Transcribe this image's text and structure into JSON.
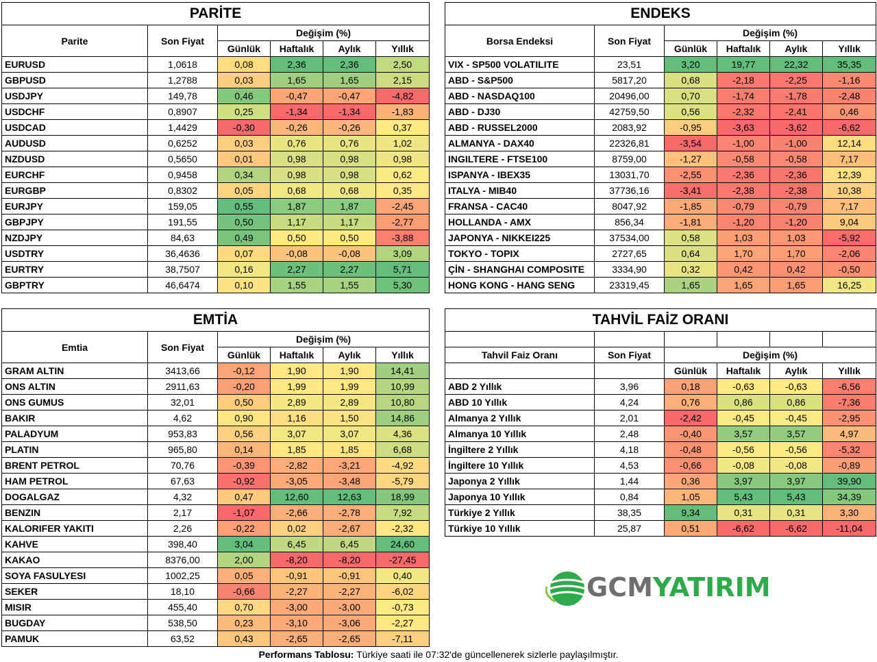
{
  "colors": {
    "scale_red": "#f8696b",
    "scale_yellow": "#ffeb84",
    "scale_green": "#63be7b"
  },
  "parite": {
    "title": "PARİTE",
    "col_name": "Parite",
    "col_price": "Son Fiyat",
    "col_change": "Değişim (%)",
    "sub": [
      "Günlük",
      "Haftalık",
      "Aylık",
      "Yıllık"
    ],
    "rows": [
      {
        "name": "EURUSD",
        "price": "1,0618",
        "vals": [
          "0,08",
          "2,36",
          "2,36",
          "2,50"
        ]
      },
      {
        "name": "GBPUSD",
        "price": "1,2788",
        "vals": [
          "0,03",
          "1,65",
          "1,65",
          "2,15"
        ]
      },
      {
        "name": "USDJPY",
        "price": "149,78",
        "vals": [
          "0,46",
          "-0,47",
          "-0,47",
          "-4,82"
        ]
      },
      {
        "name": "USDCHF",
        "price": "0,8907",
        "vals": [
          "0,25",
          "-1,34",
          "-1,34",
          "-1,83"
        ]
      },
      {
        "name": "USDCAD",
        "price": "1,4429",
        "vals": [
          "-0,30",
          "-0,26",
          "-0,26",
          "0,37"
        ]
      },
      {
        "name": "AUDUSD",
        "price": "0,6252",
        "vals": [
          "0,03",
          "0,76",
          "0,76",
          "1,02"
        ]
      },
      {
        "name": "NZDUSD",
        "price": "0,5650",
        "vals": [
          "0,01",
          "0,98",
          "0,98",
          "0,98"
        ]
      },
      {
        "name": "EURCHF",
        "price": "0,9458",
        "vals": [
          "0,34",
          "0,98",
          "0,98",
          "0,62"
        ]
      },
      {
        "name": "EURGBP",
        "price": "0,8302",
        "vals": [
          "0,05",
          "0,68",
          "0,68",
          "0,35"
        ]
      },
      {
        "name": "EURJPY",
        "price": "159,05",
        "vals": [
          "0,55",
          "1,87",
          "1,87",
          "-2,45"
        ]
      },
      {
        "name": "GBPJPY",
        "price": "191,55",
        "vals": [
          "0,50",
          "1,17",
          "1,17",
          "-2,77"
        ]
      },
      {
        "name": "NZDJPY",
        "price": "84,63",
        "vals": [
          "0,49",
          "0,50",
          "0,50",
          "-3,88"
        ]
      },
      {
        "name": "USDTRY",
        "price": "36,4636",
        "vals": [
          "0,07",
          "-0,08",
          "-0,08",
          "3,09"
        ]
      },
      {
        "name": "EURTRY",
        "price": "38,7507",
        "vals": [
          "0,16",
          "2,27",
          "2,27",
          "5,71"
        ]
      },
      {
        "name": "GBPTRY",
        "price": "46,6474",
        "vals": [
          "0,10",
          "1,55",
          "1,55",
          "5,30"
        ]
      }
    ]
  },
  "endeks": {
    "title": "ENDEKS",
    "col_name": "Borsa Endeksi",
    "col_price": "Son Fiyat",
    "col_change": "Değişim (%)",
    "sub": [
      "Günlük",
      "Haftalık",
      "Aylık",
      "Yıllık"
    ],
    "rows": [
      {
        "name": "VIX  - SP500 VOLATILITE",
        "price": "23,51",
        "vals": [
          "3,20",
          "19,77",
          "22,32",
          "35,35"
        ]
      },
      {
        "name": "ABD - S&P500",
        "price": "5817,20",
        "vals": [
          "0,68",
          "-2,18",
          "-2,25",
          "-1,16"
        ]
      },
      {
        "name": "ABD - NASDAQ100",
        "price": "20496,00",
        "vals": [
          "0,70",
          "-1,74",
          "-1,78",
          "-2,48"
        ]
      },
      {
        "name": "ABD - DJ30",
        "price": "42759,50",
        "vals": [
          "0,56",
          "-2,32",
          "-2,41",
          "0,46"
        ]
      },
      {
        "name": "ABD - RUSSEL2000",
        "price": "2083,92",
        "vals": [
          "-0,95",
          "-3,63",
          "-3,62",
          "-6,62"
        ]
      },
      {
        "name": "ALMANYA - DAX40",
        "price": "22326,81",
        "vals": [
          "-3,54",
          "-1,00",
          "-1,00",
          "12,14"
        ]
      },
      {
        "name": "INGILTERE - FTSE100",
        "price": "8759,00",
        "vals": [
          "-1,27",
          "-0,58",
          "-0,58",
          "7,17"
        ]
      },
      {
        "name": "ISPANYA - IBEX35",
        "price": "13031,70",
        "vals": [
          "-2,55",
          "-2,36",
          "-2,36",
          "12,39"
        ]
      },
      {
        "name": "ITALYA - MIB40",
        "price": "37736,16",
        "vals": [
          "-3,41",
          "-2,38",
          "-2,38",
          "10,38"
        ]
      },
      {
        "name": "FRANSA - CAC40",
        "price": "8047,92",
        "vals": [
          "-1,85",
          "-0,79",
          "-0,79",
          "7,17"
        ]
      },
      {
        "name": "HOLLANDA - AMX",
        "price": "856,34",
        "vals": [
          "-1,81",
          "-1,20",
          "-1,20",
          "9,04"
        ]
      },
      {
        "name": "JAPONYA - NIKKEI225",
        "price": "37534,00",
        "vals": [
          "0,58",
          "1,03",
          "1,03",
          "-5,92"
        ]
      },
      {
        "name": "TOKYO - TOPIX",
        "price": "2727,65",
        "vals": [
          "0,64",
          "1,70",
          "1,70",
          "-2,06"
        ]
      },
      {
        "name": "ÇİN - SHANGHAI COMPOSITE",
        "price": "3334,90",
        "vals": [
          "0,32",
          "0,42",
          "0,42",
          "-0,50"
        ]
      },
      {
        "name": "HONG KONG - HANG SENG",
        "price": "23319,45",
        "vals": [
          "1,65",
          "1,65",
          "1,65",
          "16,25"
        ]
      }
    ]
  },
  "emtia": {
    "title": "EMTİA",
    "col_name": "Emtia",
    "col_price": "Son Fiyat",
    "col_change": "Değişim (%)",
    "sub": [
      "Günlük",
      "Haftalık",
      "Aylık",
      "Yıllık"
    ],
    "rows": [
      {
        "name": "GRAM ALTIN",
        "price": "3413,66",
        "vals": [
          "-0,12",
          "1,90",
          "1,90",
          "14,41"
        ]
      },
      {
        "name": "ONS ALTIN",
        "price": "2911,63",
        "vals": [
          "-0,20",
          "1,99",
          "1,99",
          "10,99"
        ]
      },
      {
        "name": "ONS GUMUS",
        "price": "32,01",
        "vals": [
          "0,50",
          "2,89",
          "2,89",
          "10,80"
        ]
      },
      {
        "name": "BAKIR",
        "price": "4,62",
        "vals": [
          "0,90",
          "1,16",
          "1,50",
          "14,86"
        ]
      },
      {
        "name": "PALADYUM",
        "price": "953,83",
        "vals": [
          "0,56",
          "3,07",
          "3,07",
          "4,36"
        ]
      },
      {
        "name": "PLATIN",
        "price": "965,80",
        "vals": [
          "0,14",
          "1,85",
          "1,85",
          "6,68"
        ]
      },
      {
        "name": "BRENT PETROL",
        "price": "70,76",
        "vals": [
          "-0,39",
          "-2,82",
          "-3,21",
          "-4,92"
        ]
      },
      {
        "name": "HAM PETROL",
        "price": "67,63",
        "vals": [
          "-0,92",
          "-3,05",
          "-3,48",
          "-5,79"
        ]
      },
      {
        "name": "DOGALGAZ",
        "price": "4,32",
        "vals": [
          "0,47",
          "12,60",
          "12,63",
          "18,99"
        ]
      },
      {
        "name": "BENZIN",
        "price": "2,17",
        "vals": [
          "-1,07",
          "-2,66",
          "-2,78",
          "7,92"
        ]
      },
      {
        "name": "KALORIFER YAKITI",
        "price": "2,26",
        "vals": [
          "-0,22",
          "0,02",
          "-2,67",
          "-2,32"
        ]
      },
      {
        "name": "KAHVE",
        "price": "398,40",
        "vals": [
          "3,04",
          "6,45",
          "6,45",
          "24,60"
        ]
      },
      {
        "name": "KAKAO",
        "price": "8376,00",
        "vals": [
          "2,00",
          "-8,20",
          "-8,20",
          "-27,45"
        ]
      },
      {
        "name": "SOYA FASULYESI",
        "price": "1002,25",
        "vals": [
          "0,05",
          "-0,91",
          "-0,91",
          "0,40"
        ]
      },
      {
        "name": "SEKER",
        "price": "18,10",
        "vals": [
          "-0,66",
          "-2,27",
          "-2,27",
          "-6,02"
        ]
      },
      {
        "name": "MISIR",
        "price": "455,40",
        "vals": [
          "0,70",
          "-3,00",
          "-3,00",
          "-0,73"
        ]
      },
      {
        "name": "BUGDAY",
        "price": "538,50",
        "vals": [
          "0,23",
          "-3,10",
          "-3,06",
          "-2,27"
        ]
      },
      {
        "name": "PAMUK",
        "price": "63,52",
        "vals": [
          "0,43",
          "-2,65",
          "-2,65",
          "-7,11"
        ]
      }
    ]
  },
  "tahvil": {
    "title": "TAHVİL FAİZ ORANI",
    "col_name": "Tahvil Faiz Oranı",
    "col_price": "Son Fiyat",
    "col_change": "Değişim (%)",
    "sub": [
      "Günlük",
      "Haftalık",
      "Aylık",
      "Yıllık"
    ],
    "rows": [
      {
        "name": "ABD 2 Yıllık",
        "price": "3,96",
        "vals": [
          "0,18",
          "-0,63",
          "-0,63",
          "-6,56"
        ]
      },
      {
        "name": "ABD 10 Yıllık",
        "price": "4,24",
        "vals": [
          "0,76",
          "0,86",
          "0,86",
          "-7,36"
        ]
      },
      {
        "name": "Almanya 2 Yıllık",
        "price": "2,01",
        "vals": [
          "-2,42",
          "-0,45",
          "-0,45",
          "-2,95"
        ]
      },
      {
        "name": "Almanya 10 Yıllık",
        "price": "2,48",
        "vals": [
          "-0,40",
          "3,57",
          "3,57",
          "4,97"
        ]
      },
      {
        "name": "İngiltere 2 Yıllık",
        "price": "4,18",
        "vals": [
          "-0,48",
          "-0,56",
          "-0,56",
          "-5,32"
        ]
      },
      {
        "name": "İngiltere 10 Yıllık",
        "price": "4,53",
        "vals": [
          "-0,66",
          "-0,08",
          "-0,08",
          "-0,89"
        ]
      },
      {
        "name": "Japonya 2 Yıllık",
        "price": "1,44",
        "vals": [
          "0,36",
          "3,97",
          "3,97",
          "39,90"
        ]
      },
      {
        "name": "Japonya 10 Yıllık",
        "price": "0,84",
        "vals": [
          "1,05",
          "5,43",
          "5,43",
          "34,39"
        ]
      },
      {
        "name": "Türkiye 2 Yıllık",
        "price": "38,35",
        "vals": [
          "9,34",
          "0,31",
          "0,31",
          "3,30"
        ]
      },
      {
        "name": "Türkiye 10 Yıllık",
        "price": "25,87",
        "vals": [
          "0,51",
          "-6,62",
          "-6,62",
          "-11,04"
        ]
      }
    ]
  },
  "logo": {
    "part1": "GCM",
    "part2": "YATIRIM"
  },
  "footer": {
    "bold": "Performans Tablosu:",
    "text": " Türkiye saati ile 07:32'de güncellenerek sizlerle paylaşılmıştır."
  }
}
